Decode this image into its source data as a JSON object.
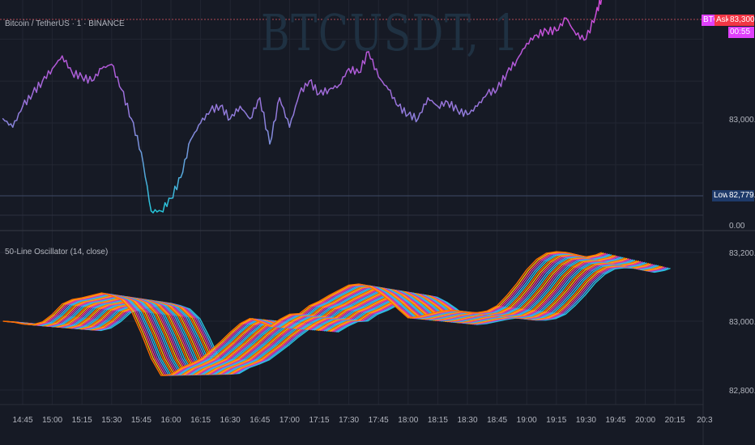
{
  "header": {
    "symbol_label": "Bitcoin / TetherUS · 1 · BINANCE",
    "watermark": "BTCUSDT, 1"
  },
  "indicator": {
    "label": "50-Line Oscillator (14, close)"
  },
  "price_axis": {
    "tags": {
      "btc": "BTC",
      "ask": "Ask",
      "ask_price": "83,300.01",
      "countdown": "00:55",
      "low_label": "Low",
      "low_price": "82,779.62"
    },
    "ticks": [
      "83,000.00",
      "0.00"
    ]
  },
  "colors": {
    "background": "#161a25",
    "grid": "#222632",
    "ask_red": "#f23645",
    "btc_magenta": "#e040fb",
    "low_navy": "#1e3a6a"
  },
  "chart_data": [
    {
      "type": "line",
      "title": "Bitcoin / TetherUS · 1 · BINANCE",
      "series": [
        {
          "color_gradient": [
            "#26c6da",
            "#7e8fdc",
            "#b05ad8",
            "#d54ad8"
          ],
          "x": [
            "14:35",
            "14:40",
            "14:45",
            "14:50",
            "14:55",
            "15:00",
            "15:05",
            "15:10",
            "15:15",
            "15:20",
            "15:25",
            "15:30",
            "15:35",
            "15:40",
            "15:45",
            "15:50",
            "15:55",
            "16:00",
            "16:05",
            "16:10",
            "16:15",
            "16:20",
            "16:25",
            "16:30",
            "16:35",
            "16:40",
            "16:45",
            "16:50",
            "16:55",
            "17:00",
            "17:05",
            "17:10",
            "17:15",
            "17:20",
            "17:25",
            "17:30",
            "17:35",
            "17:40",
            "17:45",
            "17:50",
            "17:55",
            "18:00",
            "18:05",
            "18:10",
            "18:15",
            "18:20",
            "18:25",
            "18:30",
            "18:35",
            "18:40",
            "18:45",
            "18:50",
            "18:55",
            "19:00",
            "19:05",
            "19:10",
            "19:15",
            "19:20",
            "19:25",
            "19:30",
            "19:35",
            "19:38"
          ],
          "y": [
            83010,
            82990,
            83040,
            83070,
            83100,
            83130,
            83160,
            83120,
            83110,
            83100,
            83130,
            83140,
            83080,
            83010,
            82930,
            82790,
            82790,
            82820,
            82870,
            82960,
            83000,
            83030,
            83040,
            83010,
            83040,
            83010,
            83060,
            82950,
            83060,
            82990,
            83070,
            83100,
            83070,
            83080,
            83090,
            83130,
            83120,
            83170,
            83110,
            83080,
            83040,
            83020,
            83010,
            83060,
            83040,
            83050,
            83030,
            83020,
            83040,
            83070,
            83080,
            83120,
            83150,
            83190,
            83210,
            83220,
            83220,
            83250,
            83210,
            83200,
            83260,
            83300
          ]
        }
      ],
      "price_tags": {
        "last": 83300.01,
        "low": 82779.62
      }
    },
    {
      "type": "line",
      "title": "50-Line Oscillator (14, close)",
      "x_ticks": [
        "14:45",
        "15:00",
        "15:15",
        "15:30",
        "15:45",
        "16:00",
        "16:15",
        "16:30",
        "16:45",
        "17:00",
        "17:15",
        "17:30",
        "17:45",
        "18:00",
        "18:15",
        "18:30",
        "18:45",
        "19:00",
        "19:15",
        "19:30",
        "19:45",
        "20:00",
        "20:15",
        "20:3"
      ],
      "y_ticks": [
        "83,200.00",
        "83,000.00",
        "82,800.00"
      ],
      "ylim": [
        82770,
        83225
      ],
      "series": [
        {
          "x": [
            "14:35",
            "14:40",
            "14:45",
            "14:50",
            "14:55",
            "15:00",
            "15:05",
            "15:10",
            "15:15",
            "15:20",
            "15:25",
            "15:30",
            "15:35",
            "15:40",
            "15:45",
            "15:50",
            "15:55",
            "16:00",
            "16:05",
            "16:10",
            "16:15",
            "16:20",
            "16:25",
            "16:30",
            "16:35",
            "16:40",
            "16:45",
            "16:50",
            "16:55",
            "17:00",
            "17:05",
            "17:10",
            "17:15",
            "17:20",
            "17:25",
            "17:30",
            "17:35",
            "17:40",
            "17:45",
            "17:50",
            "17:55",
            "18:00",
            "18:05",
            "18:10",
            "18:15",
            "18:20",
            "18:25",
            "18:30",
            "18:35",
            "18:40",
            "18:45",
            "18:50",
            "18:55",
            "19:00",
            "19:05",
            "19:10",
            "19:15",
            "19:20",
            "19:25",
            "19:30",
            "19:35",
            "19:38"
          ],
          "y": [
            83000,
            82998,
            82992,
            82990,
            82998,
            83020,
            83050,
            83063,
            83068,
            83075,
            83082,
            83074,
            83062,
            83030,
            82965,
            82892,
            82842,
            82845,
            82864,
            82876,
            82890,
            82915,
            82940,
            82968,
            82993,
            83008,
            82998,
            82985,
            83005,
            83020,
            83022,
            83045,
            83058,
            83075,
            83090,
            83105,
            83108,
            83102,
            83085,
            83062,
            83035,
            83010,
            83013,
            83020,
            83027,
            83032,
            83030,
            83025,
            83025,
            83030,
            83045,
            83075,
            83110,
            83150,
            83180,
            83198,
            83202,
            83200,
            83193,
            83187,
            83193,
            83200
          ],
          "spread_lines": 50,
          "palette": [
            "#ff6d00",
            "#ffb300",
            "#ff4081",
            "#ab47bc",
            "#42a5f5",
            "#26c6da"
          ]
        }
      ]
    }
  ]
}
